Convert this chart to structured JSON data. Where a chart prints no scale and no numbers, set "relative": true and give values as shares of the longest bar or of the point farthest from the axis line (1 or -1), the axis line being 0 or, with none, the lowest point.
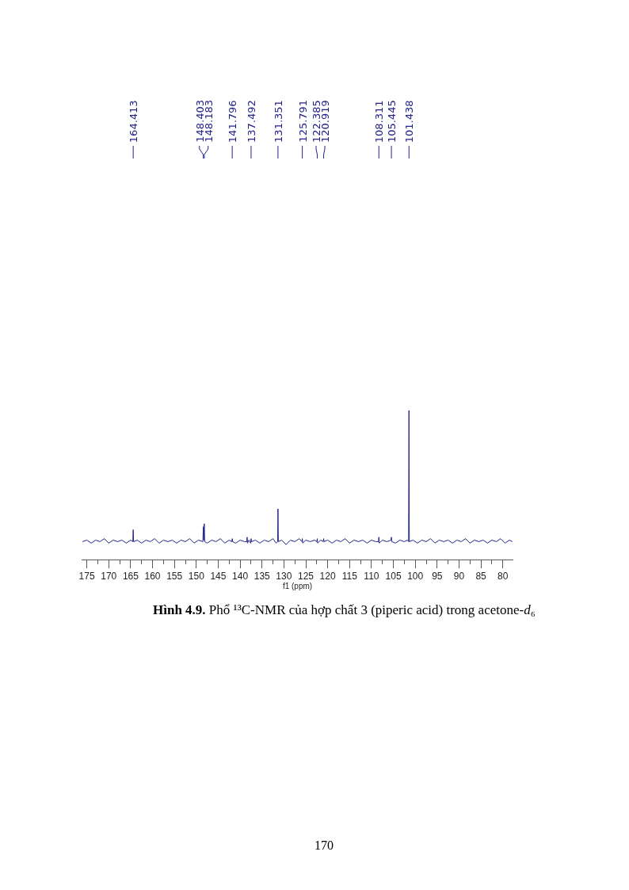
{
  "chart_data": {
    "type": "line",
    "relative": true,
    "xlabel": "f1 (ppm)",
    "color": "#23238c",
    "xlim": [
      176.2,
      77.6
    ],
    "xticks": [
      175,
      {
        "value": 172.5,
        "label": null
      },
      170,
      {
        "value": 167.5,
        "label": null
      },
      165,
      {
        "value": 162.5,
        "label": null
      },
      160,
      {
        "value": 157.5,
        "label": null
      },
      155,
      {
        "value": 152.5,
        "label": null
      },
      150,
      {
        "value": 147.5,
        "label": null
      },
      145,
      {
        "value": 142.5,
        "label": null
      },
      140,
      {
        "value": 137.5,
        "label": null
      },
      135,
      {
        "value": 132.5,
        "label": null
      },
      130,
      {
        "value": 127.5,
        "label": null
      },
      125,
      {
        "value": 122.5,
        "label": null
      },
      120,
      {
        "value": 117.5,
        "label": null
      },
      115,
      {
        "value": 112.5,
        "label": null
      },
      110,
      {
        "value": 107.5,
        "label": null
      },
      105,
      {
        "value": 102.5,
        "label": null
      },
      100,
      {
        "value": 97.5,
        "label": null
      },
      95,
      {
        "value": 92.5,
        "label": null
      },
      90,
      {
        "value": 87.5,
        "label": null
      },
      85,
      {
        "value": 82.5,
        "label": null
      },
      80
    ],
    "x": [
      176.0,
      175.0,
      174.0,
      173.0,
      172.0,
      171.0,
      170.0,
      169.0,
      168.0,
      167.0,
      166.0,
      165.0,
      164.5,
      164.413,
      164.33,
      163.5,
      162.5,
      161.5,
      160.5,
      159.5,
      158.5,
      157.5,
      156.5,
      155.5,
      154.5,
      153.5,
      152.5,
      151.5,
      150.5,
      149.5,
      148.5,
      148.403,
      148.29,
      148.183,
      148.1,
      147.5,
      146.5,
      145.5,
      144.5,
      143.5,
      142.5,
      141.88,
      141.796,
      141.71,
      141.0,
      140.0,
      139.0,
      138.48,
      138.4,
      138.32,
      138.0,
      137.58,
      137.492,
      137.41,
      136.5,
      135.5,
      134.5,
      133.5,
      132.5,
      131.8,
      131.43,
      131.351,
      131.27,
      130.5,
      129.5,
      128.5,
      127.5,
      126.5,
      125.87,
      125.791,
      125.71,
      125.0,
      124.0,
      123.0,
      122.47,
      122.385,
      122.3,
      121.6,
      121.0,
      120.919,
      120.84,
      120.0,
      119.0,
      118.0,
      117.0,
      116.0,
      115.0,
      114.0,
      113.0,
      112.0,
      111.0,
      110.0,
      109.0,
      108.39,
      108.311,
      108.23,
      107.5,
      106.5,
      105.53,
      105.445,
      105.36,
      104.5,
      103.5,
      102.5,
      101.8,
      101.52,
      101.438,
      101.36,
      100.5,
      99.5,
      98.5,
      97.5,
      96.5,
      95.5,
      94.5,
      93.5,
      92.5,
      91.5,
      90.5,
      89.5,
      88.5,
      87.5,
      86.5,
      85.5,
      84.5,
      83.5,
      82.5,
      81.5,
      80.5,
      79.5,
      78.5,
      77.8
    ],
    "values": [
      0.12,
      0.13,
      0.11,
      0.13,
      0.12,
      0.14,
      0.11,
      0.13,
      0.12,
      0.13,
      0.11,
      0.13,
      0.12,
      0.2,
      0.12,
      0.13,
      0.11,
      0.13,
      0.12,
      0.14,
      0.11,
      0.13,
      0.12,
      0.13,
      0.11,
      0.13,
      0.12,
      0.14,
      0.11,
      0.13,
      0.12,
      0.22,
      0.13,
      0.24,
      0.12,
      0.11,
      0.13,
      0.12,
      0.14,
      0.11,
      0.13,
      0.12,
      0.14,
      0.12,
      0.11,
      0.13,
      0.12,
      0.12,
      0.15,
      0.11,
      0.13,
      0.11,
      0.14,
      0.12,
      0.13,
      0.11,
      0.13,
      0.12,
      0.14,
      0.11,
      0.12,
      0.34,
      0.12,
      0.13,
      0.1,
      0.13,
      0.12,
      0.14,
      0.12,
      0.14,
      0.11,
      0.13,
      0.12,
      0.13,
      0.12,
      0.14,
      0.11,
      0.13,
      0.12,
      0.14,
      0.12,
      0.13,
      0.11,
      0.13,
      0.12,
      0.14,
      0.11,
      0.13,
      0.12,
      0.13,
      0.11,
      0.13,
      0.12,
      0.12,
      0.15,
      0.11,
      0.13,
      0.12,
      0.13,
      0.15,
      0.12,
      0.11,
      0.13,
      0.12,
      0.13,
      0.12,
      1.0,
      0.12,
      0.13,
      0.11,
      0.13,
      0.12,
      0.14,
      0.11,
      0.13,
      0.12,
      0.13,
      0.11,
      0.13,
      0.12,
      0.14,
      0.11,
      0.13,
      0.12,
      0.13,
      0.11,
      0.13,
      0.12,
      0.14,
      0.11,
      0.13,
      0.12
    ],
    "annotations": [
      {
        "text": "164.413",
        "x": 164.413
      },
      {
        "text": "148.403",
        "x": 148.403
      },
      {
        "text": "148.183",
        "x": 148.183
      },
      {
        "text": "141.796",
        "x": 141.796
      },
      {
        "text": "137.492",
        "x": 137.492
      },
      {
        "text": "131.351",
        "x": 131.351
      },
      {
        "text": "125.791",
        "x": 125.791
      },
      {
        "text": "122.385",
        "x": 122.385
      },
      {
        "text": "120.919",
        "x": 120.919
      },
      {
        "text": "108.311",
        "x": 108.311
      },
      {
        "text": "105.445",
        "x": 105.445
      },
      {
        "text": "101.438",
        "x": 101.438
      },
      "Hình 4.9. Phổ ¹³C-NMR của hợp chất 3 (piperic acid) trong acetone-d₆",
      "170"
    ]
  }
}
